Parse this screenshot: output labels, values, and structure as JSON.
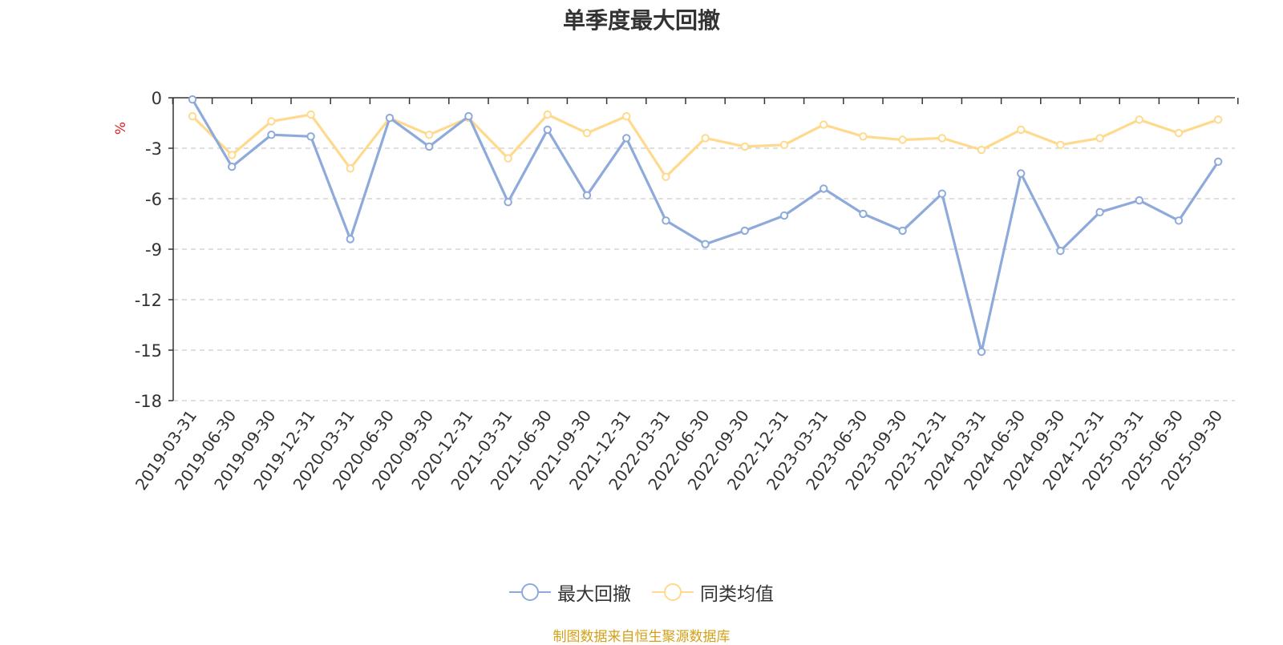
{
  "chart_data": {
    "type": "line",
    "title": "单季度最大回撤",
    "ylabel": "%",
    "ylim": [
      -18,
      0
    ],
    "yticks": [
      0,
      -3,
      -6,
      -9,
      -12,
      -15,
      -18
    ],
    "grid": true,
    "legend_position": "bottom",
    "categories": [
      "2019-03-31",
      "2019-06-30",
      "2019-09-30",
      "2019-12-31",
      "2020-03-31",
      "2020-06-30",
      "2020-09-30",
      "2020-12-31",
      "2021-03-31",
      "2021-06-30",
      "2021-09-30",
      "2021-12-31",
      "2022-03-31",
      "2022-06-30",
      "2022-09-30",
      "2022-12-31",
      "2023-03-31",
      "2023-06-30",
      "2023-09-30",
      "2023-12-31",
      "2024-03-31",
      "2024-06-30",
      "2024-09-30",
      "2024-12-31",
      "2025-03-31",
      "2025-06-30",
      "2025-09-30"
    ],
    "series": [
      {
        "name": "最大回撤",
        "color": "#8eaadb",
        "values": [
          -0.1,
          -4.1,
          -2.2,
          -2.3,
          -8.4,
          -1.2,
          -2.9,
          -1.1,
          -6.2,
          -1.9,
          -5.8,
          -2.4,
          -7.3,
          -8.7,
          -7.9,
          -7.0,
          -5.4,
          -6.9,
          -7.9,
          -5.7,
          -15.1,
          -4.5,
          -9.1,
          -6.8,
          -6.1,
          -7.3,
          -3.8
        ]
      },
      {
        "name": "同类均值",
        "color": "#ffd98e",
        "values": [
          -1.1,
          -3.4,
          -1.4,
          -1.0,
          -4.2,
          -1.2,
          -2.2,
          -1.2,
          -3.6,
          -1.0,
          -2.1,
          -1.1,
          -4.7,
          -2.4,
          -2.9,
          -2.8,
          -1.6,
          -2.3,
          -2.5,
          -2.4,
          -3.1,
          -1.9,
          -2.8,
          -2.4,
          -1.3,
          -2.1,
          -1.3
        ]
      }
    ]
  },
  "source_note": "制图数据来自恒生聚源数据库"
}
